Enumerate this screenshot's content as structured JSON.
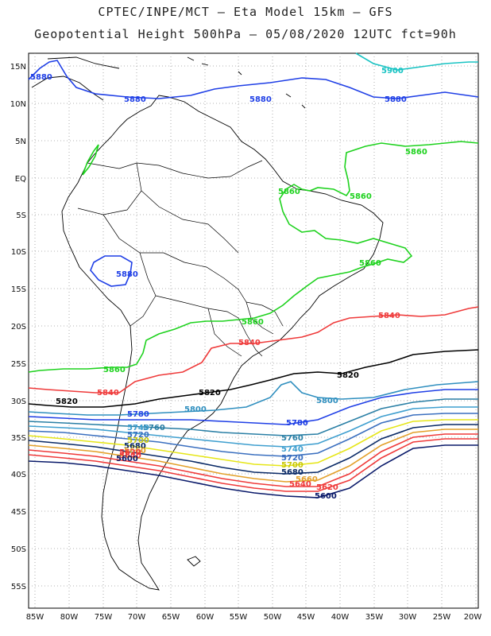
{
  "title_line1": "CPTEC/INPE/MCT –  Eta Model 15km – GFS",
  "title_line2": "Geopotential Height 500hPa – 05/08/2020 12UTC fct=90h",
  "lat_labels": [
    "15N",
    "10N",
    "5N",
    "EQ",
    "5S",
    "10S",
    "15S",
    "20S",
    "25S",
    "30S",
    "35S",
    "40S",
    "45S",
    "50S",
    "55S"
  ],
  "lon_labels": [
    "85W",
    "80W",
    "75W",
    "70W",
    "65W",
    "60W",
    "55W",
    "50W",
    "45W",
    "40W",
    "35W",
    "30W",
    "25W",
    "20W"
  ],
  "colors": {
    "c5900": "#19c3c3",
    "c5880": "#1f3fe6",
    "c5860": "#1ed21e",
    "c5840": "#ef3a3a",
    "c5820": "#000000",
    "c5800": "#2f8fbf",
    "c5780": "#1f3fe6",
    "c5760": "#2a7fa5",
    "c5740": "#3f9fcf",
    "c5720": "#3a6fbf",
    "c5700": "#e6e619",
    "c5680": "#0a2a66",
    "c5660": "#e3a02a",
    "c5640": "#ef3a3a",
    "c5620": "#ef3a3a",
    "c5600": "#0a1a6a"
  },
  "contour_labels": {
    "l5900": "5900",
    "l5880a": "5880",
    "l5880b": "5880",
    "l5880c": "5880",
    "l5880d": "5880",
    "l5880e": "5880",
    "l5860a": "5860",
    "l5860b": "5860",
    "l5860c": "5860",
    "l5860d": "5860",
    "l5860e": "5860",
    "l5860f": "5860",
    "l5840a": "5840",
    "l5840b": "5840",
    "l5840c": "5840",
    "l5820a": "5820",
    "l5820b": "5820",
    "l5820c": "5820",
    "l5800a": "5800",
    "l5800b": "5800",
    "l5780a": "5780",
    "l5780b": "5780",
    "l5760a": "5760",
    "l5760b": "5760",
    "l5740a": "5740",
    "l5740b": "5740",
    "l5720a": "5720",
    "l5720b": "5720",
    "l5700a": "5700",
    "l5700b": "5700",
    "l5680a": "5680",
    "l5680b": "5680",
    "l5660a": "5660",
    "l5660b": "5660",
    "l5640a": "5640",
    "l5640b": "5640",
    "l5620a": "5620",
    "l5620b": "5620",
    "l5600a": "5600",
    "l5600b": "5600"
  }
}
